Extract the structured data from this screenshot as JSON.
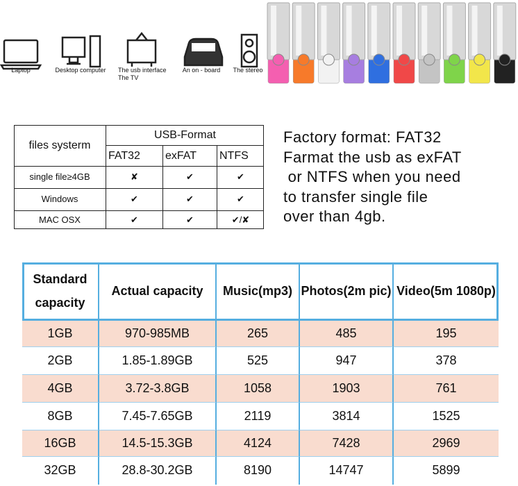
{
  "devices": [
    [
      "Laptop"
    ],
    [
      "Desktop computer"
    ],
    [
      "The usb interface",
      "The TV"
    ],
    [
      "An on - board"
    ],
    [
      "The stereo"
    ]
  ],
  "format_table": {
    "corner": "files systerm",
    "group": "USB-Format",
    "columns": [
      "FAT32",
      "exFAT",
      "NTFS"
    ],
    "rows": [
      [
        "single file≥4GB",
        "✘",
        "✔",
        "✔"
      ],
      [
        "Windows",
        "✔",
        "✔",
        "✔"
      ],
      [
        "MAC OSX",
        "✔",
        "✔",
        "✔/✘"
      ]
    ]
  },
  "notes": [
    "Factory format: FAT32",
    "Farmat the usb as exFAT",
    " or NTFS when you need",
    "to transfer single file",
    "over than 4gb."
  ],
  "capacity_table": {
    "header": [
      [
        "Standard",
        "capacity"
      ],
      [
        "Actual capacity"
      ],
      [
        "Music(mp3)"
      ],
      [
        "Photos(2m pic)"
      ],
      [
        "Video(5m 1080p)"
      ]
    ],
    "rows": [
      [
        "1GB",
        "970-985MB",
        265,
        485,
        195
      ],
      [
        "2GB",
        "1.85-1.89GB",
        525,
        947,
        378
      ],
      [
        "4GB",
        "3.72-3.8GB",
        1058,
        1903,
        761
      ],
      [
        "8GB",
        "7.45-7.65GB",
        2119,
        3814,
        1525
      ],
      [
        "16GB",
        "14.5-15.3GB",
        4124,
        7428,
        2969
      ],
      [
        "32GB",
        "28.8-30.2GB",
        8190,
        14747,
        5899
      ]
    ]
  }
}
